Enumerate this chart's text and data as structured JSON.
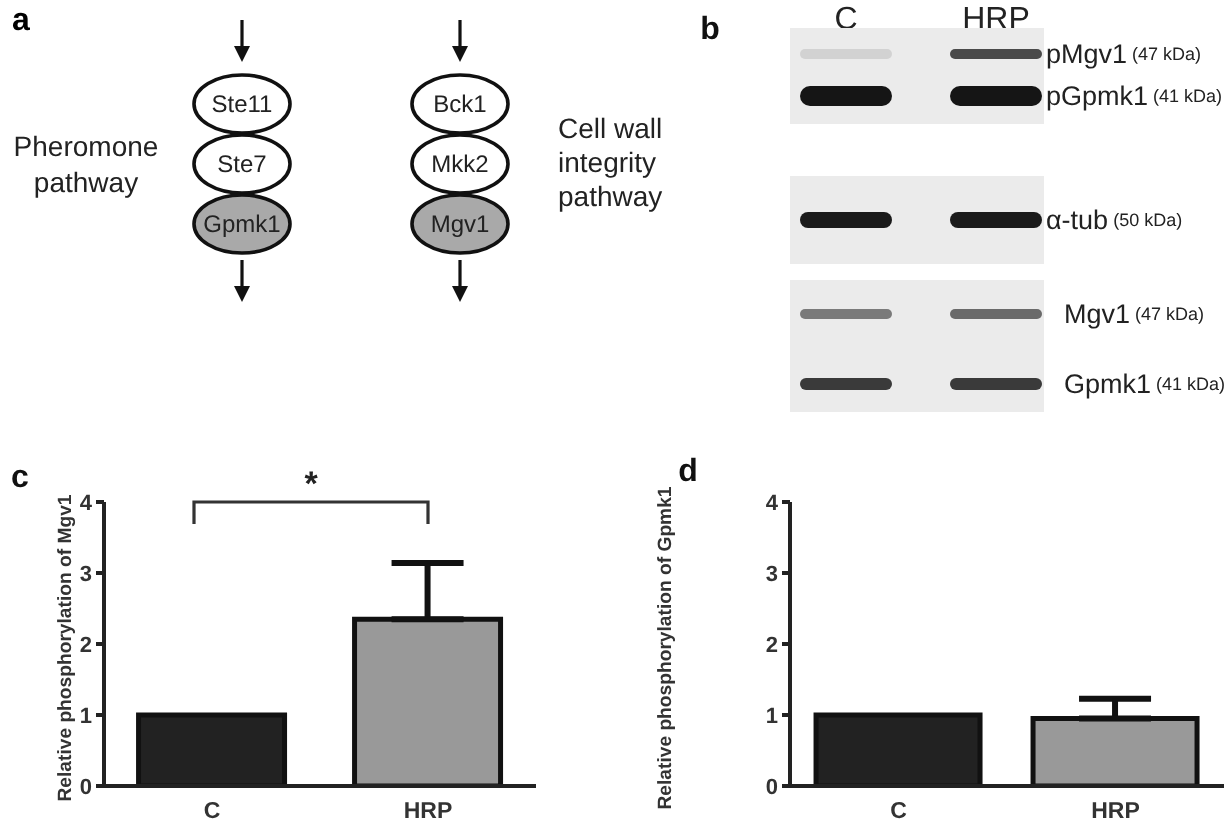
{
  "chart_data": [
    {
      "type": "other",
      "title": "a",
      "annotations": [
        "Pheromone pathway",
        "Ste11",
        "Ste7",
        "Gpmk1",
        "Bck1",
        "Mkk2",
        "Mgv1",
        "Cell wall integrity pathway"
      ]
    },
    {
      "type": "other",
      "title": "b",
      "categories": [
        "C",
        "HRP"
      ],
      "annotations": [
        "pMgv1 (47 kDa)",
        "pGpmk1 (41 kDa)",
        "α-tub (50 kDa)",
        "Mgv1 (47 kDa)",
        "Gpmk1 (41 kDa)"
      ]
    },
    {
      "type": "bar",
      "title": "c",
      "categories": [
        "C",
        "HRP"
      ],
      "values": [
        1,
        2.35
      ],
      "colors": [
        "#222222",
        "#999999"
      ],
      "errors": [
        null,
        [
          2.35,
          3.14
        ]
      ],
      "ylabel": "Relative phosphorylation of Mgv1",
      "ylim": [
        0,
        4
      ],
      "yticks": [
        0,
        1,
        2,
        3,
        4
      ],
      "annotations": [
        "*"
      ]
    },
    {
      "type": "bar",
      "title": "d",
      "categories": [
        "C",
        "HRP"
      ],
      "values": [
        1,
        0.95
      ],
      "colors": [
        "#222222",
        "#999999"
      ],
      "errors": [
        null,
        [
          0.95,
          1.23
        ]
      ],
      "ylabel": "Relative phosphorylation of Gpmk1",
      "ylim": [
        0,
        4
      ],
      "yticks": [
        0,
        1,
        2,
        3,
        4
      ]
    }
  ]
}
